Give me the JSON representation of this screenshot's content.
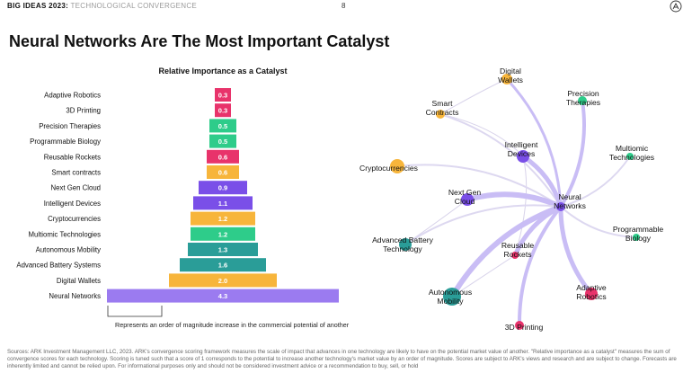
{
  "header": {
    "brand": "BIG IDEAS 2023:",
    "section": "TECHNOLOGICAL CONVERGENCE",
    "page_number": "8"
  },
  "title": "Neural Networks Are The Most Important Catalyst",
  "footer": "Sources: ARK Investment Management LLC, 2023. ARK's convergence scoring framework measures the scale of impact that advances in one technology are likely to have on the potential market value of another. \"Relative importance as a catalyst\" measures the sum of convergence scores for each technology. Scoring is tuned such that a score of 1 corresponds to the potential to increase another technology's market value by an order of magnitude. Scores are subject to ARK's views and research and are subject to change. Forecasts are inherently limited and cannot be relied upon. For informational purposes only and should not be considered investment advice or a recommendation to buy, sell, or hold",
  "chart_data": [
    {
      "type": "bar",
      "orientation": "horizontal",
      "title": "Relative Importance as a Catalyst",
      "annotation": "Represents an order of magnitude increase in the commercial potential of another technology.",
      "categories": [
        "Adaptive Robotics",
        "3D Printing",
        "Precision Therapies",
        "Programmable Biology",
        "Reusable Rockets",
        "Smart contracts",
        "Next Gen Cloud",
        "Intelligent Devices",
        "Cryptocurrencies",
        "Multiomic Technologies",
        "Autonomous Mobility",
        "Advanced Battery Systems",
        "Digital Wallets",
        "Neural Networks"
      ],
      "values": [
        0.3,
        0.3,
        0.5,
        0.5,
        0.6,
        0.6,
        0.9,
        1.1,
        1.2,
        1.2,
        1.3,
        1.6,
        2.0,
        4.3
      ],
      "value_labels": [
        "0.3",
        "0.3",
        "0.5",
        "0.5",
        "0.6",
        "0.6",
        "0.9",
        "1.1",
        "1.2",
        "1.2",
        "1.3",
        "1.6",
        "2.0",
        "4.3"
      ],
      "colors": [
        "#e8336b",
        "#e8336b",
        "#2ecc8a",
        "#2ecc8a",
        "#e8336b",
        "#f7b53b",
        "#7a4fe8",
        "#7a4fe8",
        "#f7b53b",
        "#2ecc8a",
        "#2a9d98",
        "#2a9d98",
        "#f7b53b",
        "#9b7bf0"
      ],
      "xlim": [
        0,
        4.3
      ]
    },
    {
      "type": "network",
      "center": "Neural Networks",
      "nodes": [
        {
          "name": "Neural Networks",
          "label": [
            "Neural",
            "Networks"
          ],
          "color": "#7a4fe8"
        },
        {
          "name": "Digital Wallets",
          "label": [
            "Digital",
            "Wallets"
          ],
          "color": "#f7b53b"
        },
        {
          "name": "Smart Contracts",
          "label": [
            "Smart",
            "Contracts"
          ],
          "color": "#f7b53b"
        },
        {
          "name": "Precision Therapies",
          "label": [
            "Precision",
            "Therapies"
          ],
          "color": "#2ecc8a"
        },
        {
          "name": "Intelligent Devices",
          "label": [
            "Intelligent",
            "Devices"
          ],
          "color": "#7a4fe8"
        },
        {
          "name": "Multiomic Technologies",
          "label": [
            "Multiomic",
            "Technologies"
          ],
          "color": "#2ecc8a"
        },
        {
          "name": "Cryptocurrencies",
          "label": [
            "Cryptocurrencies"
          ],
          "color": "#f7b53b"
        },
        {
          "name": "Next Gen Cloud",
          "label": [
            "Next Gen",
            "Cloud"
          ],
          "color": "#7a4fe8"
        },
        {
          "name": "Programmable Biology",
          "label": [
            "Programmable",
            "Biology"
          ],
          "color": "#2ecc8a"
        },
        {
          "name": "Advanced Battery Technology",
          "label": [
            "Advanced Battery",
            "Technology"
          ],
          "color": "#2a9d98"
        },
        {
          "name": "Reusable Rockets",
          "label": [
            "Reusable",
            "Rockets"
          ],
          "color": "#e8336b"
        },
        {
          "name": "Autonomous Mobility",
          "label": [
            "Autonomous",
            "Mobility"
          ],
          "color": "#2a9d98"
        },
        {
          "name": "Adaptive Robotics",
          "label": [
            "Adaptive",
            "Robotics"
          ],
          "color": "#e8336b"
        },
        {
          "name": "3D Printing",
          "label": [
            "3D Printing"
          ],
          "color": "#e8336b"
        }
      ]
    }
  ]
}
